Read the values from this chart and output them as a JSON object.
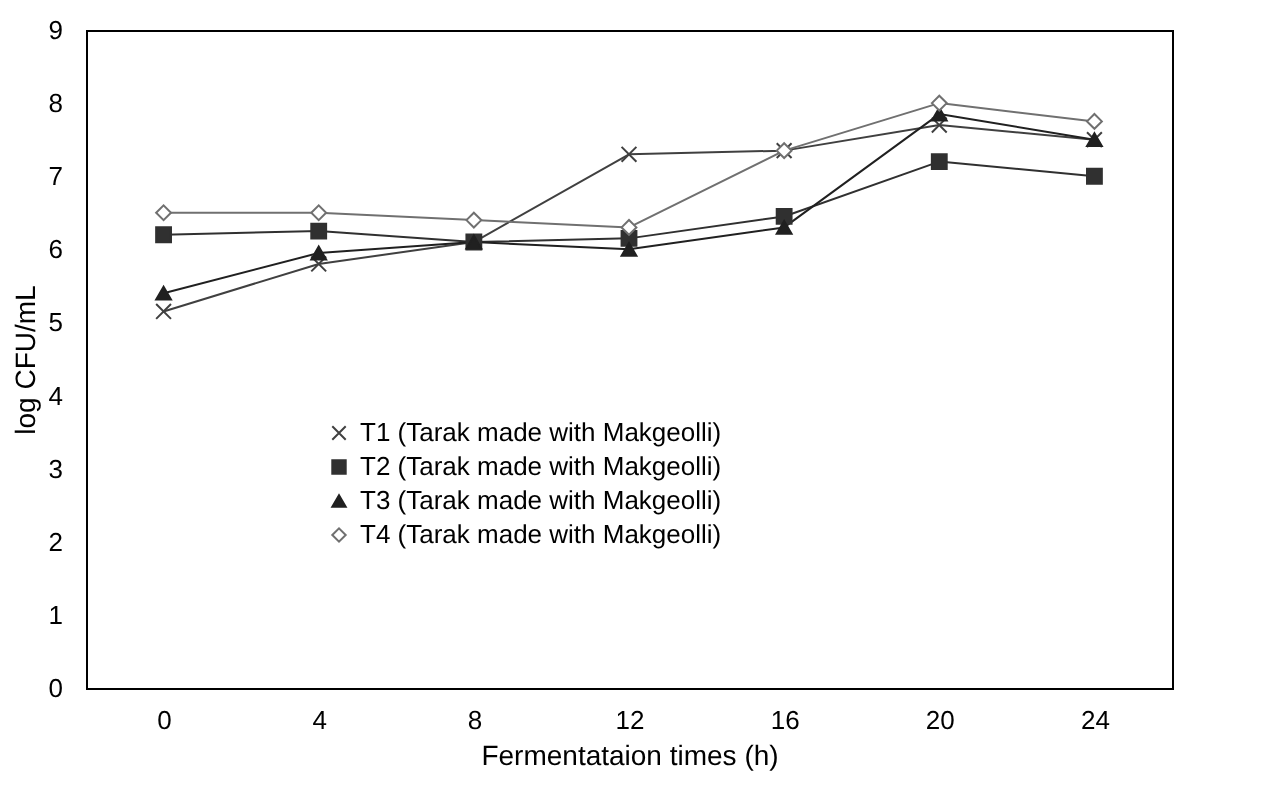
{
  "chart_data": {
    "type": "line",
    "xlabel": "Fermentataion times (h)",
    "ylabel": "log CFU/mL",
    "categories": [
      "0",
      "4",
      "8",
      "12",
      "16",
      "20",
      "24"
    ],
    "ylim": [
      0,
      9
    ],
    "yticks": [
      0,
      1,
      2,
      3,
      4,
      5,
      6,
      7,
      8,
      9
    ],
    "grid": false,
    "legend": "bottom",
    "line_style": "solid",
    "series": [
      {
        "name": "T1 (Tarak made with Makgeolli)",
        "color": "#404040",
        "marker": "cross",
        "values": [
          5.15,
          5.8,
          6.1,
          7.3,
          7.35,
          7.7,
          7.5
        ]
      },
      {
        "name": "T2 (Tarak made with Makgeolli)",
        "color": "#303030",
        "marker": "square",
        "values": [
          6.2,
          6.25,
          6.1,
          6.15,
          6.45,
          7.2,
          7.0
        ]
      },
      {
        "name": "T3 (Tarak made with Makgeolli)",
        "color": "#202020",
        "marker": "triangle",
        "values": [
          5.4,
          5.95,
          6.1,
          6.0,
          6.3,
          7.85,
          7.5
        ]
      },
      {
        "name": "T4 (Tarak made with Makgeolli)",
        "color": "#707070",
        "marker": "diamond",
        "values": [
          6.5,
          6.5,
          6.4,
          6.3,
          7.35,
          8.0,
          7.75
        ]
      }
    ]
  }
}
